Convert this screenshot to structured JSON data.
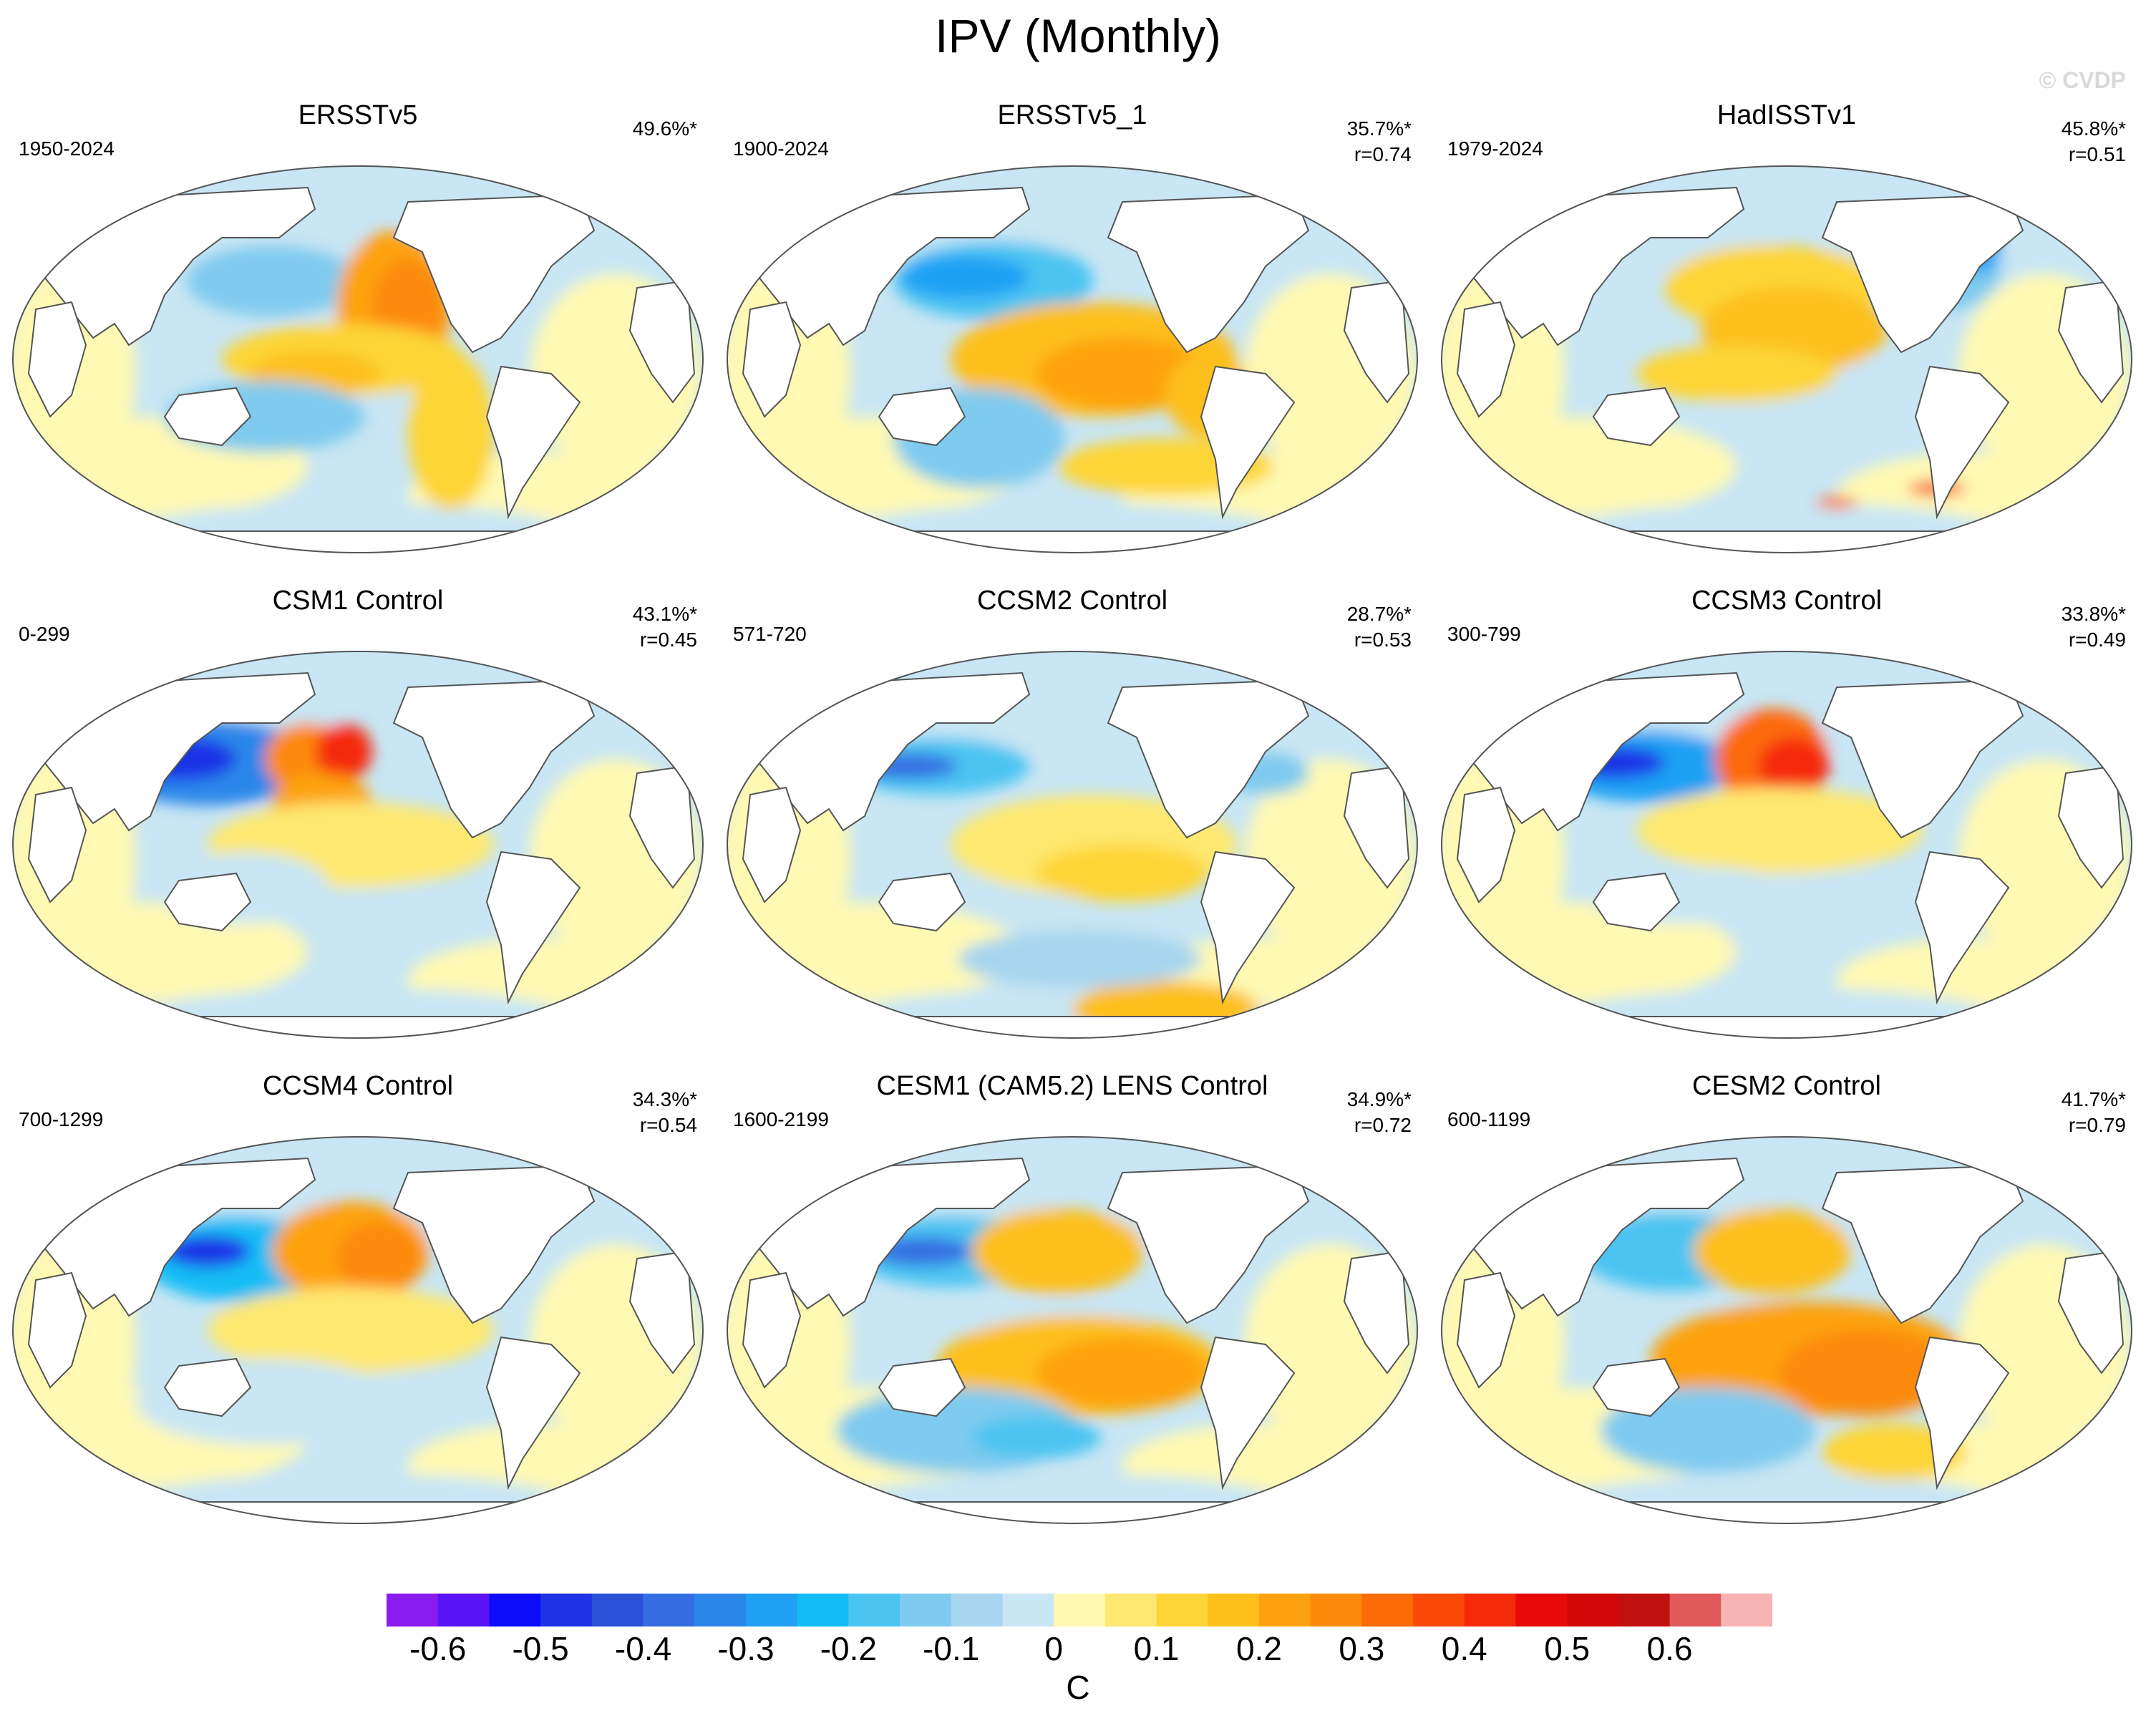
{
  "title": "IPV (Monthly)",
  "credit": "© CVDP",
  "panels": [
    {
      "title": "ERSSTv5",
      "period": "1950-2024",
      "pct": "49.6%*",
      "r": ""
    },
    {
      "title": "ERSSTv5_1",
      "period": "1900-2024",
      "pct": "35.7%*",
      "r": "r=0.74"
    },
    {
      "title": "HadISSTv1",
      "period": "1979-2024",
      "pct": "45.8%*",
      "r": "r=0.51"
    },
    {
      "title": "CSM1 Control",
      "period": "0-299",
      "pct": "43.1%*",
      "r": "r=0.45"
    },
    {
      "title": "CCSM2 Control",
      "period": "571-720",
      "pct": "28.7%*",
      "r": "r=0.53"
    },
    {
      "title": "CCSM3 Control",
      "period": "300-799",
      "pct": "33.8%*",
      "r": "r=0.49"
    },
    {
      "title": "CCSM4 Control",
      "period": "700-1299",
      "pct": "34.3%*",
      "r": "r=0.54"
    },
    {
      "title": "CESM1 (CAM5.2) LENS Control",
      "period": "1600-2199",
      "pct": "34.9%*",
      "r": "r=0.72"
    },
    {
      "title": "CESM2 Control",
      "period": "600-1199",
      "pct": "41.7%*",
      "r": "r=0.79"
    }
  ],
  "colorbar": {
    "unit": "C",
    "ticks": [
      "-0.6",
      "-0.5",
      "-0.4",
      "-0.3",
      "-0.2",
      "-0.1",
      "0",
      "0.1",
      "0.2",
      "0.3",
      "0.4",
      "0.5",
      "0.6"
    ],
    "colors": [
      "#8a1cf0",
      "#5a14f5",
      "#0c0cf8",
      "#1e32e6",
      "#2a50d8",
      "#356ee2",
      "#2b86ea",
      "#1fa0f4",
      "#12bdf5",
      "#4cc4f2",
      "#7fcbef",
      "#a7d5ef",
      "#c8e6f4",
      "#fff9b4",
      "#fee870",
      "#fdd536",
      "#fdbf1a",
      "#fda20e",
      "#fd8a0a",
      "#fd6a08",
      "#fb4a08",
      "#f52a08",
      "#e80a08",
      "#d20808",
      "#c01010",
      "#e05a5a",
      "#f8b4b4"
    ]
  },
  "colors": {
    "land": "#ffffff",
    "coast": "#555555",
    "warm": "#fdbf1a",
    "cool": "#7fcbef"
  }
}
